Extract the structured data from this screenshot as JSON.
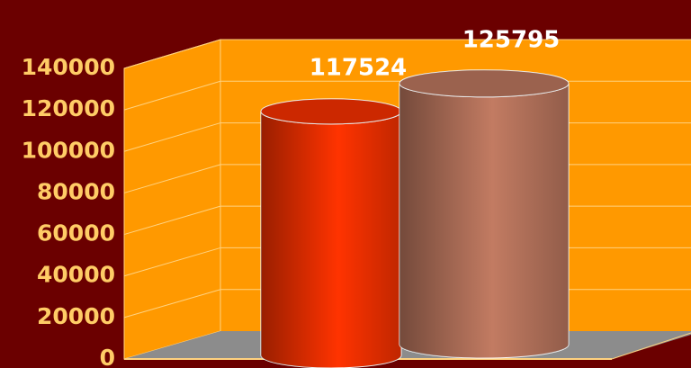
{
  "chart_data": {
    "type": "cylinder",
    "categories": [
      null,
      null
    ],
    "values": [
      117524,
      125795
    ],
    "colors": [
      "#ff3300",
      "#c27b62"
    ],
    "ylim": [
      0,
      140000
    ],
    "yticks": [
      0,
      20000,
      40000,
      60000,
      80000,
      100000,
      120000,
      140000
    ],
    "grid": true
  }
}
